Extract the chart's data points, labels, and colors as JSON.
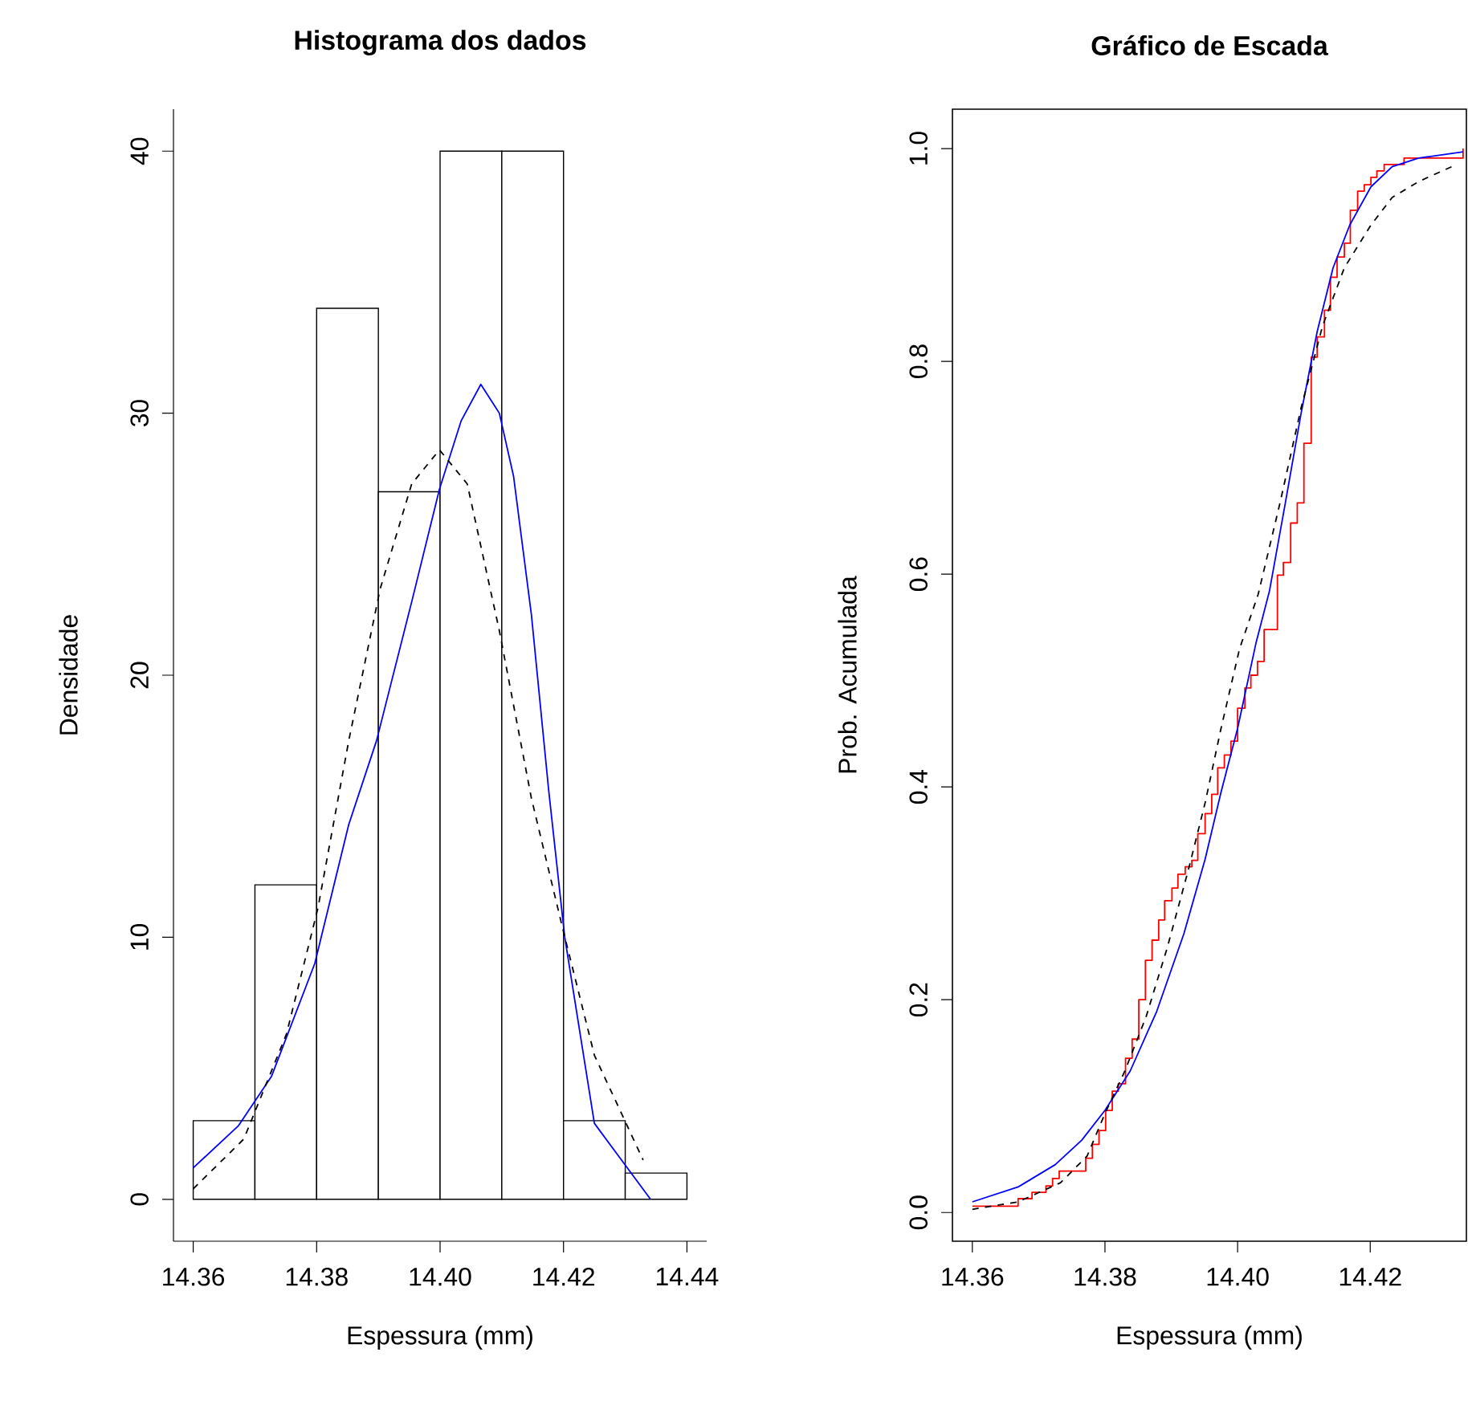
{
  "chart_data": [
    {
      "type": "histogram",
      "title": "Histograma dos dados",
      "xlabel": "Espessura (mm)",
      "ylabel": "Densidade",
      "bins": [
        14.36,
        14.37,
        14.38,
        14.39,
        14.4,
        14.41,
        14.42,
        14.43,
        14.44
      ],
      "values": [
        3,
        12,
        34,
        27,
        40,
        40,
        3,
        1
      ],
      "color": "#ffffff",
      "xlim": [
        14.3568,
        14.4432
      ],
      "ylim": [
        -1.6,
        41.6
      ],
      "xticks": [
        14.36,
        14.38,
        {
          "value": 14.4,
          "label": "14.40"
        },
        14.42,
        14.44
      ],
      "yticks": [
        0,
        10,
        20,
        30,
        40
      ],
      "series": [
        {
          "type": "line",
          "color": "#0000ff",
          "line_style": "solid",
          "x": [
            14.36,
            14.3673,
            14.3727,
            14.3797,
            14.3852,
            14.3897,
            14.3954,
            14.3999,
            14.4034,
            14.4066,
            14.4096,
            14.4119,
            14.4148,
            14.4176,
            14.4202,
            14.4227,
            14.425,
            14.4341
          ],
          "values": [
            1.2,
            2.8,
            4.7,
            9.0,
            14.3,
            17.5,
            22.8,
            27.1,
            29.7,
            31.1,
            30.0,
            27.6,
            22.3,
            15.6,
            10.0,
            6.3,
            2.9,
            0
          ]
        },
        {
          "type": "line",
          "color": "#000000",
          "line_style": "dashed",
          "x": [
            14.36,
            14.3682,
            14.3751,
            14.3802,
            14.3852,
            14.3903,
            14.3954,
            14.3999,
            14.4044,
            14.4096,
            14.4148,
            14.4199,
            14.425,
            14.4329
          ],
          "values": [
            0.4,
            2.3,
            6.3,
            11.1,
            17.5,
            23.3,
            27.3,
            28.6,
            27.3,
            21.7,
            15.3,
            10.3,
            5.5,
            1.5
          ]
        }
      ]
    },
    {
      "type": "line",
      "title": "Gráfico de Escada",
      "xlabel": "Espessura (mm)",
      "ylabel": "Prob. Acumulada",
      "xlim": [
        14.357,
        14.4345
      ],
      "ylim": [
        -0.027,
        1.037
      ],
      "xticks": [
        14.36,
        14.38,
        {
          "value": 14.4,
          "label": "14.40"
        },
        14.42
      ],
      "yticks": [
        {
          "value": 0,
          "label": "0.0"
        },
        0.2,
        0.4,
        0.6,
        0.8,
        {
          "value": 1,
          "label": "1.0"
        }
      ],
      "series": [
        {
          "type": "step",
          "color": "#ff0000",
          "line_style": "solid",
          "x": [
            14.36,
            14.3669,
            14.369,
            14.3711,
            14.3721,
            14.3731,
            14.3771,
            14.3781,
            14.3791,
            14.3801,
            14.3811,
            14.382,
            14.3831,
            14.3841,
            14.3851,
            14.3861,
            14.3871,
            14.3881,
            14.389,
            14.3901,
            14.391,
            14.3921,
            14.3931,
            14.394,
            14.3951,
            14.3961,
            14.397,
            14.398,
            14.399,
            14.4,
            14.4011,
            14.402,
            14.403,
            14.404,
            14.406,
            14.4069,
            14.408,
            14.409,
            14.41,
            14.4111,
            14.412,
            14.4131,
            14.414,
            14.415,
            14.4161,
            14.417,
            14.4181,
            14.4191,
            14.4201,
            14.421,
            14.4221,
            14.4251,
            14.434
          ],
          "values": [
            0.006,
            0.013,
            0.019,
            0.025,
            0.032,
            0.039,
            0.051,
            0.064,
            0.077,
            0.096,
            0.114,
            0.121,
            0.145,
            0.163,
            0.2,
            0.237,
            0.256,
            0.275,
            0.293,
            0.305,
            0.318,
            0.325,
            0.331,
            0.356,
            0.375,
            0.393,
            0.418,
            0.43,
            0.443,
            0.474,
            0.493,
            0.505,
            0.518,
            0.548,
            0.599,
            0.611,
            0.648,
            0.667,
            0.723,
            0.804,
            0.823,
            0.848,
            0.879,
            0.898,
            0.911,
            0.942,
            0.96,
            0.966,
            0.973,
            0.979,
            0.985,
            0.991,
            1.0
          ]
        },
        {
          "type": "line",
          "color": "#0000ff",
          "line_style": "solid",
          "x": [
            14.36,
            14.3669,
            14.3725,
            14.3765,
            14.38,
            14.3838,
            14.3878,
            14.3919,
            14.3951,
            14.3975,
            14.4,
            14.4028,
            14.4048,
            14.4072,
            14.4096,
            14.412,
            14.4144,
            14.4169,
            14.4201,
            14.4233,
            14.4273,
            14.434
          ],
          "values": [
            0.01,
            0.024,
            0.045,
            0.068,
            0.096,
            0.133,
            0.189,
            0.262,
            0.332,
            0.395,
            0.455,
            0.536,
            0.584,
            0.667,
            0.752,
            0.828,
            0.888,
            0.928,
            0.964,
            0.983,
            0.991,
            0.997
          ]
        },
        {
          "type": "line",
          "color": "#000000",
          "line_style": "dashed",
          "x": [
            14.36,
            14.3669,
            14.3733,
            14.3773,
            14.38,
            14.383,
            14.3862,
            14.3894,
            14.3927,
            14.3951,
            14.3975,
            14.4003,
            14.4031,
            14.4064,
            14.4096,
            14.4128,
            14.4161,
            14.4201,
            14.4233,
            14.4273,
            14.433
          ],
          "values": [
            0.003,
            0.01,
            0.028,
            0.053,
            0.093,
            0.133,
            0.184,
            0.249,
            0.325,
            0.385,
            0.455,
            0.53,
            0.581,
            0.667,
            0.757,
            0.833,
            0.888,
            0.928,
            0.954,
            0.969,
            0.985
          ]
        }
      ]
    }
  ]
}
